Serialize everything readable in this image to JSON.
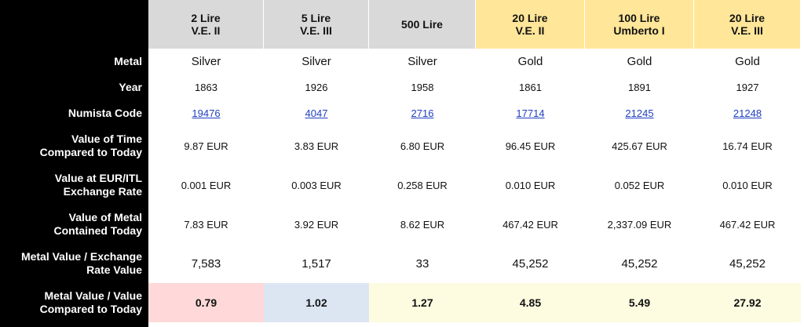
{
  "colors": {
    "label_background": "#000000",
    "silver_header": "#d9d9d9",
    "gold_header": "#ffe699",
    "result_low": "#ffd9d9",
    "result_mid": "#dce6f2",
    "result_high": "#fdfbe0",
    "link": "#1f3fbf"
  },
  "headers": [
    {
      "label": "2 Lire\nV.E. II",
      "tint": "silver"
    },
    {
      "label": "5 Lire\nV.E. III",
      "tint": "silver"
    },
    {
      "label": "500 Lire",
      "tint": "silver"
    },
    {
      "label": "20 Lire\nV.E. II",
      "tint": "gold"
    },
    {
      "label": "100 Lire\nUmberto I",
      "tint": "gold"
    },
    {
      "label": "20 Lire\nV.E. III",
      "tint": "gold"
    }
  ],
  "row_labels": {
    "metal": "Metal",
    "year": "Year",
    "numista": "Numista Code",
    "value_time": "Value of Time\nCompared to Today",
    "value_exchange": "Value at EUR/ITL\nExchange Rate",
    "value_metal": "Value of Metal\nContained Today",
    "ratio": "Metal Value / Exchange\nRate Value",
    "compared": "Metal Value / Value\nCompared to Today"
  },
  "rows": {
    "metal": [
      "Silver",
      "Silver",
      "Silver",
      "Gold",
      "Gold",
      "Gold"
    ],
    "year": [
      "1863",
      "1926",
      "1958",
      "1861",
      "1891",
      "1927"
    ],
    "numista": [
      "19476",
      "4047",
      "2716",
      "17714",
      "21245",
      "21248"
    ],
    "value_time": [
      "9.87 EUR",
      "3.83 EUR",
      "6.80 EUR",
      "96.45 EUR",
      "425.67 EUR",
      "16.74 EUR"
    ],
    "value_exchange": [
      "0.001 EUR",
      "0.003 EUR",
      "0.258 EUR",
      "0.010 EUR",
      "0.052 EUR",
      "0.010 EUR"
    ],
    "value_metal": [
      "7.83 EUR",
      "3.92 EUR",
      "8.62 EUR",
      "467.42 EUR",
      "2,337.09 EUR",
      "467.42 EUR"
    ],
    "ratio": [
      "7,583",
      "1,517",
      "33",
      "45,252",
      "45,252",
      "45,252"
    ],
    "compared": [
      {
        "value": "0.79",
        "tint": "low"
      },
      {
        "value": "1.02",
        "tint": "mid"
      },
      {
        "value": "1.27",
        "tint": "high"
      },
      {
        "value": "4.85",
        "tint": "high"
      },
      {
        "value": "5.49",
        "tint": "high"
      },
      {
        "value": "27.92",
        "tint": "high"
      }
    ]
  }
}
